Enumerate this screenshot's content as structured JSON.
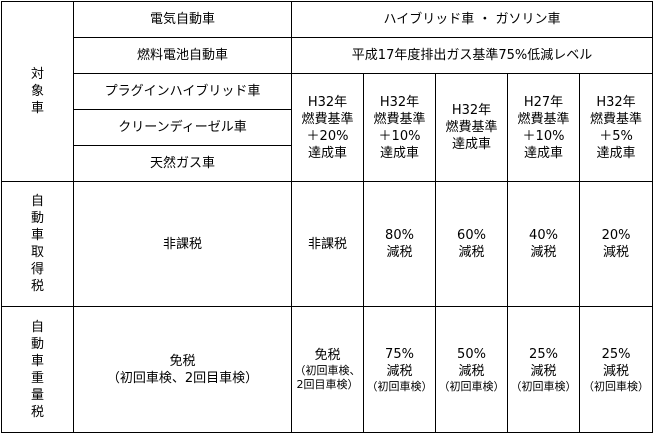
{
  "header": {
    "target_label": [
      "対",
      "象",
      "車"
    ],
    "eligible_types": [
      "電気自動車",
      "燃料電池自動車",
      "プラグインハイブリッド車",
      "クリーンディーゼル車",
      "天然ガス車"
    ],
    "hybrid_gasoline": "ハイブリッド車 ・ ガソリン車",
    "emission_level": "平成17年度排出ガス基準75%低減レベル",
    "fuel_tiers": [
      [
        "H32年",
        "燃費基準",
        "＋20%",
        "達成車"
      ],
      [
        "H32年",
        "燃費基準",
        "＋10%",
        "達成車"
      ],
      [
        "H32年",
        "燃費基準",
        "達成車"
      ],
      [
        "H27年",
        "燃費基準",
        "＋10%",
        "達成車"
      ],
      [
        "H32年",
        "燃費基準",
        "＋5%",
        "達成車"
      ]
    ]
  },
  "acquisition_tax": {
    "label": [
      "自",
      "動",
      "車",
      "取",
      "得",
      "税"
    ],
    "eco_vehicles": "非課税",
    "tiers": [
      [
        "非課税"
      ],
      [
        "80%",
        "減税"
      ],
      [
        "60%",
        "減税"
      ],
      [
        "40%",
        "減税"
      ],
      [
        "20%",
        "減税"
      ]
    ]
  },
  "weight_tax": {
    "label": [
      "自",
      "動",
      "車",
      "重",
      "量",
      "税"
    ],
    "eco_vehicles": [
      "免税",
      "（初回車検、2回目車検）"
    ],
    "tiers": [
      {
        "main": [
          "免税"
        ],
        "note": [
          "（初回車検、",
          "2回目車検）"
        ]
      },
      {
        "main": [
          "75%",
          "減税"
        ],
        "note": [
          "（初回車検）"
        ]
      },
      {
        "main": [
          "50%",
          "減税"
        ],
        "note": [
          "（初回車検）"
        ]
      },
      {
        "main": [
          "25%",
          "減税"
        ],
        "note": [
          "（初回車検）"
        ]
      },
      {
        "main": [
          "25%",
          "減税"
        ],
        "note": [
          "（初回車検）"
        ]
      }
    ]
  }
}
